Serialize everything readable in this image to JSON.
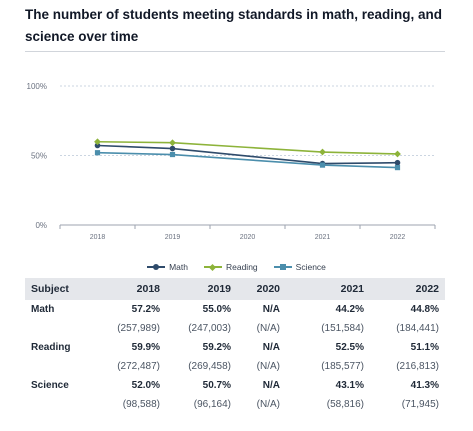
{
  "title": "The number of students meeting standards in math, reading, and science over time",
  "chart_data": {
    "type": "line",
    "x": [
      "2018",
      "2019",
      "2020",
      "2021",
      "2022"
    ],
    "yticks": [
      "0%",
      "50%",
      "100%"
    ],
    "ylim": [
      0,
      100
    ],
    "grid": true,
    "legend_position": "bottom",
    "series": [
      {
        "name": "Math",
        "color": "#2f4b6b",
        "marker": "circle",
        "values": [
          57.2,
          55.0,
          null,
          44.2,
          44.8
        ]
      },
      {
        "name": "Reading",
        "color": "#8db33a",
        "marker": "diamond",
        "values": [
          59.9,
          59.2,
          null,
          52.5,
          51.1
        ]
      },
      {
        "name": "Science",
        "color": "#4b8eac",
        "marker": "square",
        "values": [
          52.0,
          50.7,
          null,
          43.1,
          41.3
        ]
      }
    ]
  },
  "table": {
    "header": {
      "subject": "Subject",
      "y2018": "2018",
      "y2019": "2019",
      "y2020": "2020",
      "y2021": "2021",
      "y2022": "2022"
    },
    "rows": [
      {
        "subject": "Math",
        "pct": [
          "57.2%",
          "55.0%",
          "N/A",
          "44.2%",
          "44.8%"
        ],
        "counts": [
          "(257,989)",
          "(247,003)",
          "(N/A)",
          "(151,584)",
          "(184,441)"
        ]
      },
      {
        "subject": "Reading",
        "pct": [
          "59.9%",
          "59.2%",
          "N/A",
          "52.5%",
          "51.1%"
        ],
        "counts": [
          "(272,487)",
          "(269,458)",
          "(N/A)",
          "(185,577)",
          "(216,813)"
        ]
      },
      {
        "subject": "Science",
        "pct": [
          "52.0%",
          "50.7%",
          "N/A",
          "43.1%",
          "41.3%"
        ],
        "counts": [
          "(98,588)",
          "(96,164)",
          "(N/A)",
          "(58,816)",
          "(71,945)"
        ]
      }
    ]
  }
}
